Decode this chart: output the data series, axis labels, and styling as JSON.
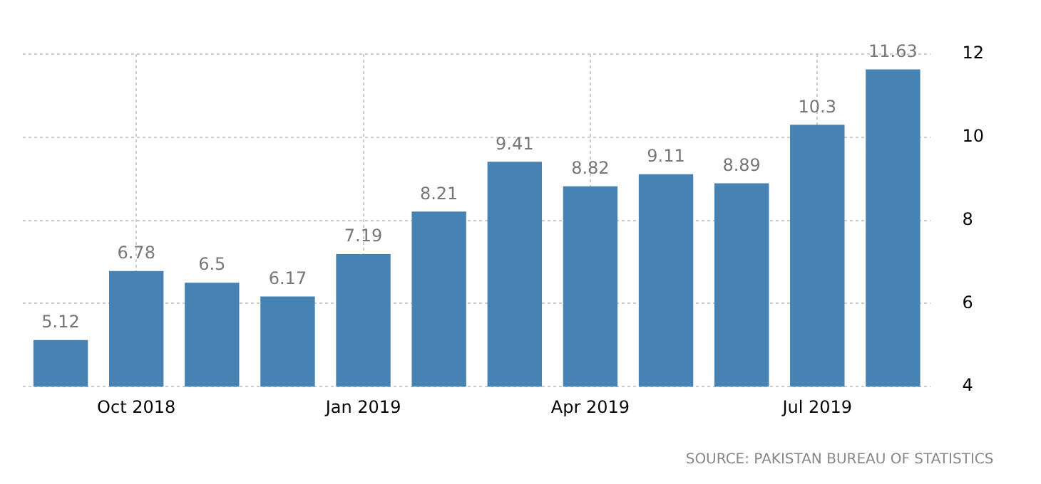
{
  "chart_data": {
    "type": "bar",
    "categories": [
      null,
      "Oct 2018",
      null,
      null,
      "Jan 2019",
      null,
      null,
      "Apr 2019",
      null,
      null,
      "Jul 2019",
      null
    ],
    "values": [
      5.12,
      6.78,
      6.5,
      6.17,
      7.19,
      8.21,
      9.41,
      8.82,
      9.11,
      8.89,
      10.3,
      11.63
    ],
    "color": "#4682b4",
    "ylim": [
      4,
      12
    ],
    "yticks": [
      4,
      6,
      8,
      10,
      12
    ],
    "grid": true,
    "data_labels": true,
    "annotations": [
      "SOURCE: PAKISTAN BUREAU OF STATISTICS"
    ]
  }
}
